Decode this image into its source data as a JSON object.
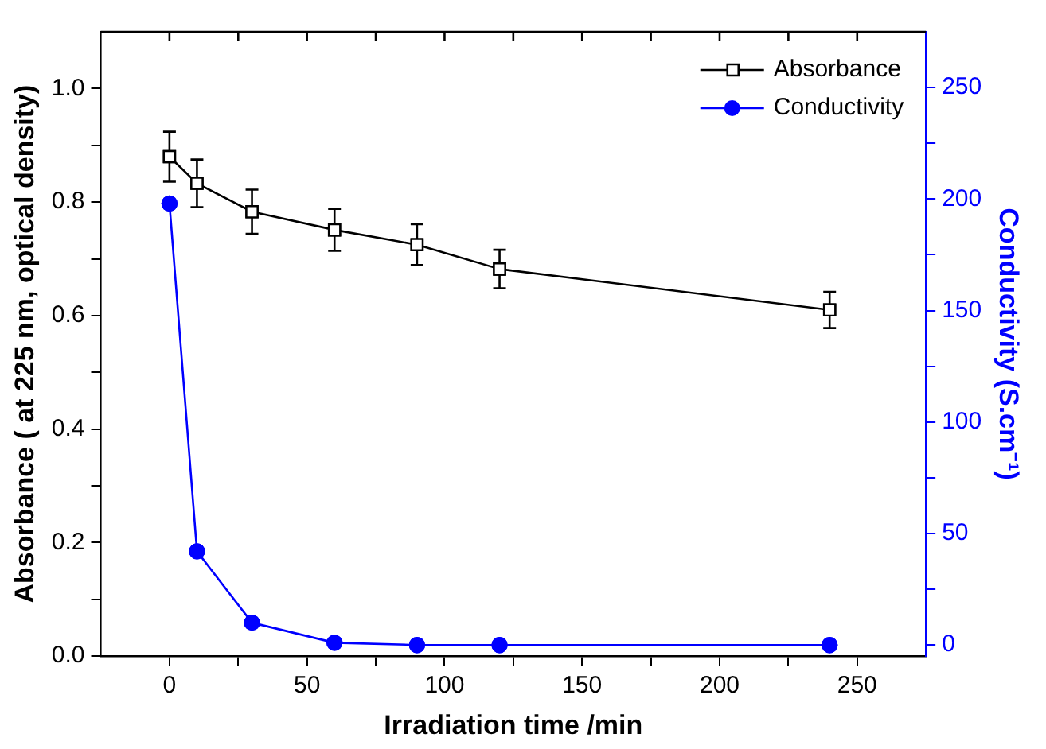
{
  "chart_data": {
    "type": "line",
    "xlabel": "Irradiation time /min",
    "ylabel": "Absorbance ( at 225 nm, optical density)",
    "y2label": "Conductivity (S.cm⁻¹)",
    "x": [
      0,
      10,
      30,
      60,
      90,
      120,
      240
    ],
    "series": [
      {
        "name": "Absorbance",
        "color": "#000000",
        "marker": "square",
        "values": [
          0.88,
          0.833,
          0.783,
          0.751,
          0.725,
          0.682,
          0.61
        ],
        "errors": [
          0.044,
          0.042,
          0.039,
          0.037,
          0.036,
          0.034,
          0.032
        ]
      },
      {
        "name": "Conductivity",
        "color": "#0000ff",
        "marker": "circle",
        "axis": "y2",
        "values": [
          198,
          42,
          10,
          1,
          0,
          0,
          0
        ]
      }
    ],
    "xlim": [
      -25,
      275
    ],
    "xticks": [
      0,
      {
        "value": 25,
        "label": null
      },
      50,
      {
        "value": 75,
        "label": null
      },
      100,
      {
        "value": 125,
        "label": null
      },
      150,
      {
        "value": 175,
        "label": null
      },
      200,
      {
        "value": 225,
        "label": null
      },
      250
    ],
    "ylim": [
      0,
      1.1
    ],
    "yticks": [
      {
        "value": 0,
        "label": "0.0"
      },
      {
        "value": 0.1,
        "label": null
      },
      0.2,
      {
        "value": 0.3,
        "label": null
      },
      0.4,
      {
        "value": 0.5,
        "label": null
      },
      0.6,
      {
        "value": 0.7,
        "label": null
      },
      0.8,
      {
        "value": 0.9,
        "label": null
      },
      {
        "value": 1,
        "label": "1.0"
      }
    ],
    "y2lim": [
      -5,
      275
    ],
    "y2ticks": [
      0,
      {
        "value": 25,
        "label": null
      },
      50,
      {
        "value": 75,
        "label": null
      },
      100,
      {
        "value": 125,
        "label": null
      },
      150,
      {
        "value": 175,
        "label": null
      },
      200,
      {
        "value": 225,
        "label": null
      },
      250
    ],
    "legend": "top right",
    "grid": false,
    "line_style": "solid"
  }
}
